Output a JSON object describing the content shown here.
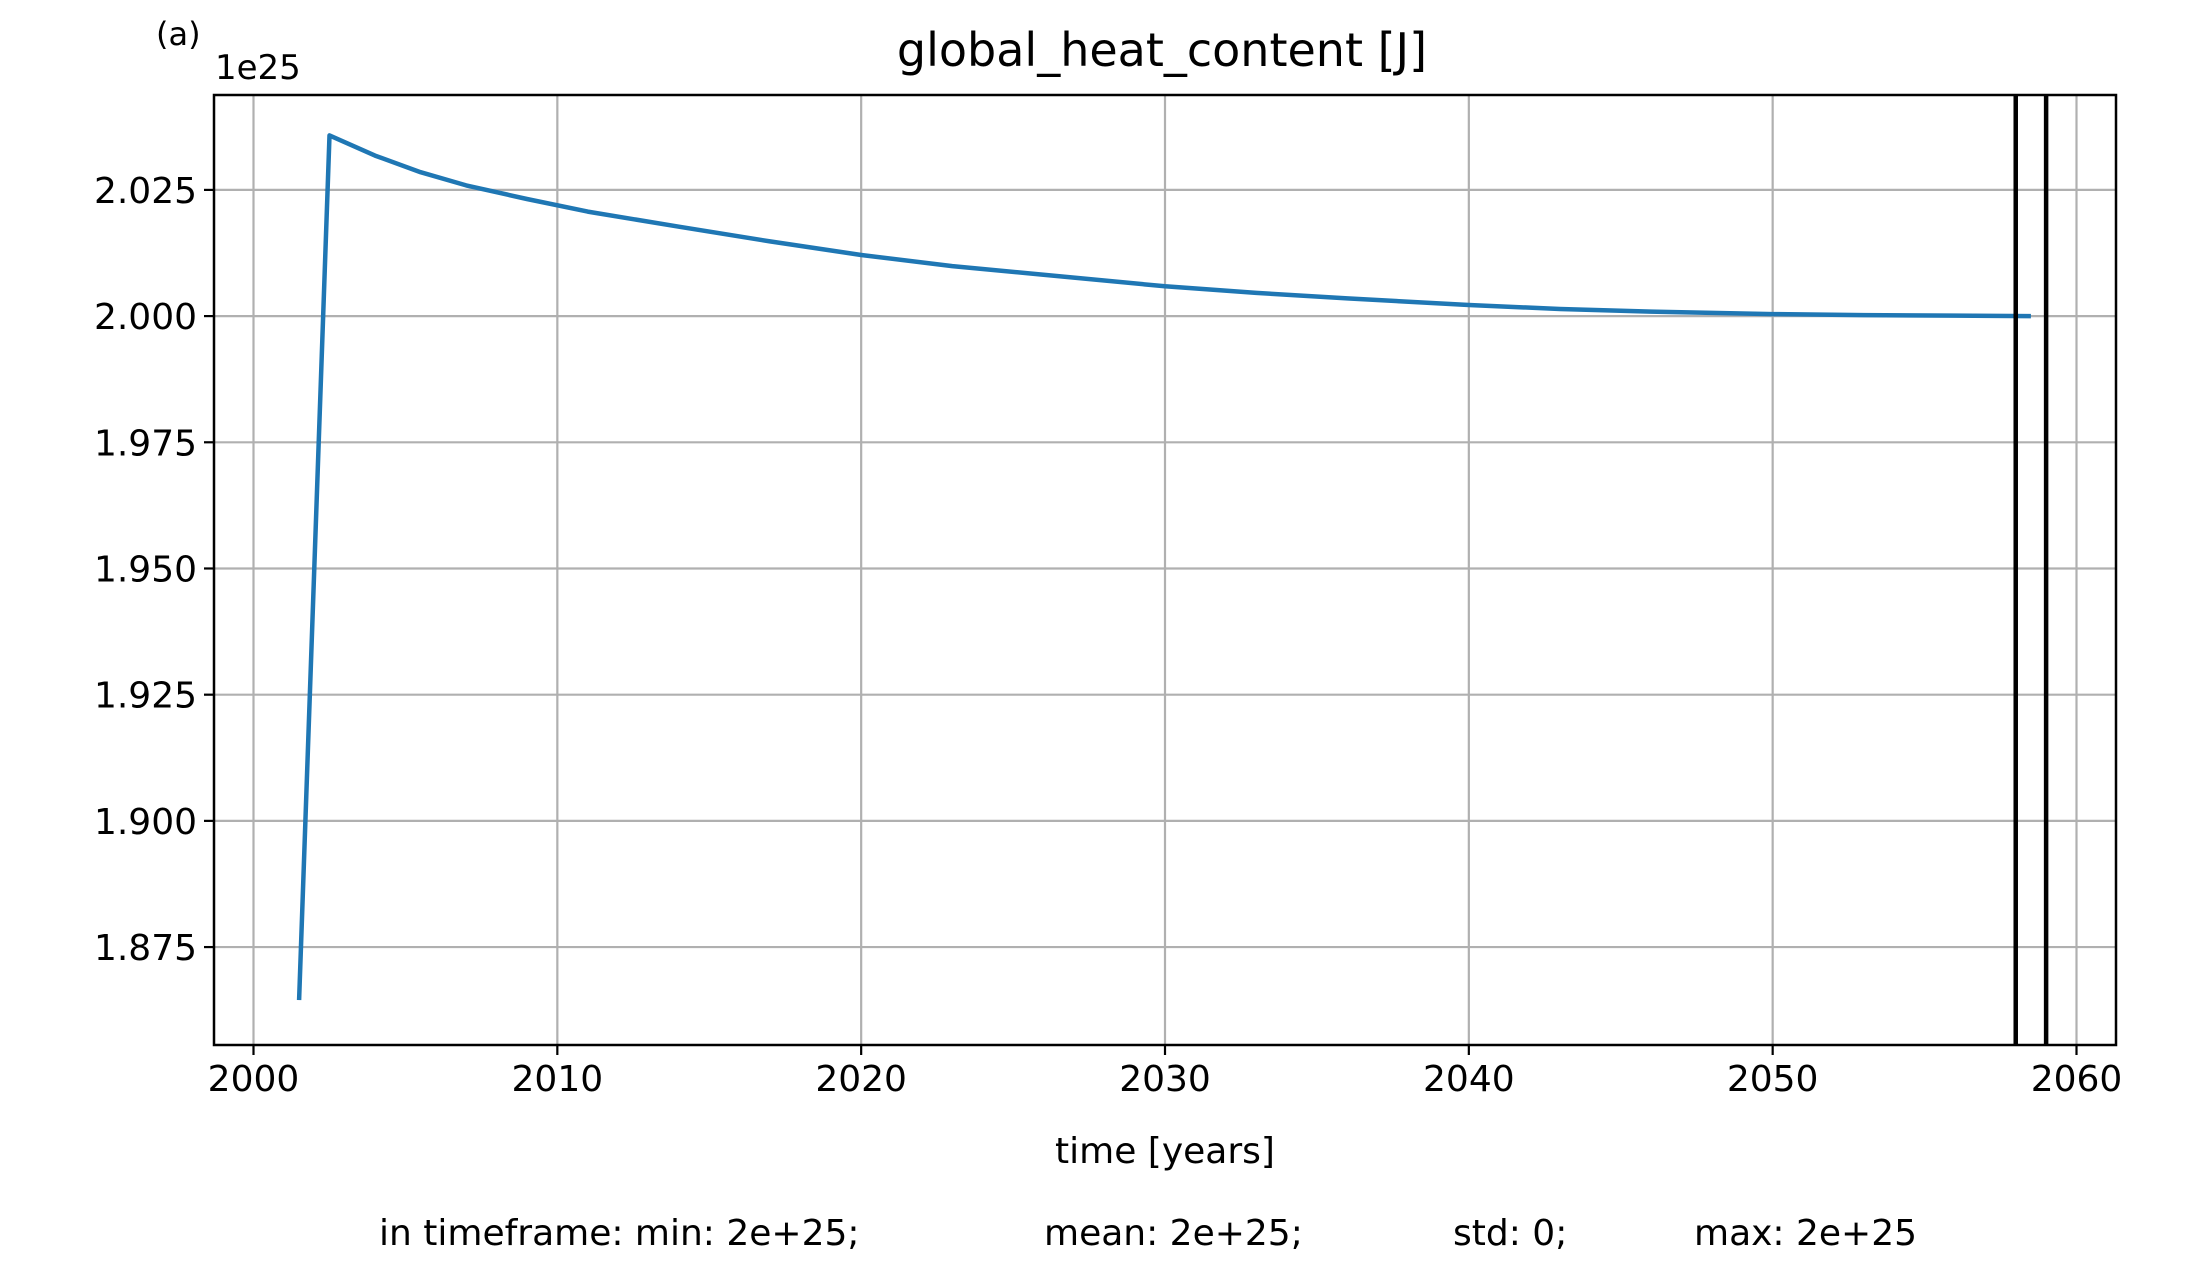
{
  "panel_label": "(a)",
  "chart_data": {
    "type": "line",
    "title": "global_heat_content [J]",
    "xlabel": "time [years]",
    "ylabel": "",
    "y_offset_label": "1e25",
    "xlim": [
      1998.7,
      2061.3
    ],
    "ylim": [
      1.8556,
      2.0438
    ],
    "x_ticks": [
      2000,
      2010,
      2020,
      2030,
      2040,
      2050,
      2060
    ],
    "x_tick_labels": [
      "2000",
      "2010",
      "2020",
      "2030",
      "2040",
      "2050",
      "2060"
    ],
    "y_ticks": [
      1.875,
      1.9,
      1.925,
      1.95,
      1.975,
      2.0,
      2.025
    ],
    "y_tick_labels": [
      "1.875",
      "1.900",
      "1.925",
      "1.950",
      "1.975",
      "2.000",
      "2.025"
    ],
    "grid": true,
    "series": [
      {
        "color": "#1f77b4",
        "x": [
          2001.5,
          2002.5,
          2004,
          2005.5,
          2007,
          2009,
          2011,
          2014,
          2017,
          2020,
          2023,
          2026,
          2030,
          2033,
          2036,
          2040,
          2043,
          2046,
          2050,
          2053,
          2056,
          2058.5
        ],
        "y": [
          1.8645,
          2.0358,
          2.0318,
          2.0285,
          2.0259,
          2.0232,
          2.0207,
          2.0177,
          2.0148,
          2.0121,
          2.0099,
          2.0082,
          2.0059,
          2.0046,
          2.0035,
          2.0022,
          2.0014,
          2.0009,
          2.0004,
          2.0002,
          2.0001,
          2.0
        ]
      }
    ],
    "vertical_lines": [
      {
        "x": 2058,
        "color": "#000000"
      },
      {
        "x": 2059,
        "color": "#000000"
      }
    ],
    "stats": {
      "min": "in timeframe: min: 2e+25;",
      "mean": "mean: 2e+25;",
      "std": "std: 0;",
      "max": "max: 2e+25"
    }
  }
}
